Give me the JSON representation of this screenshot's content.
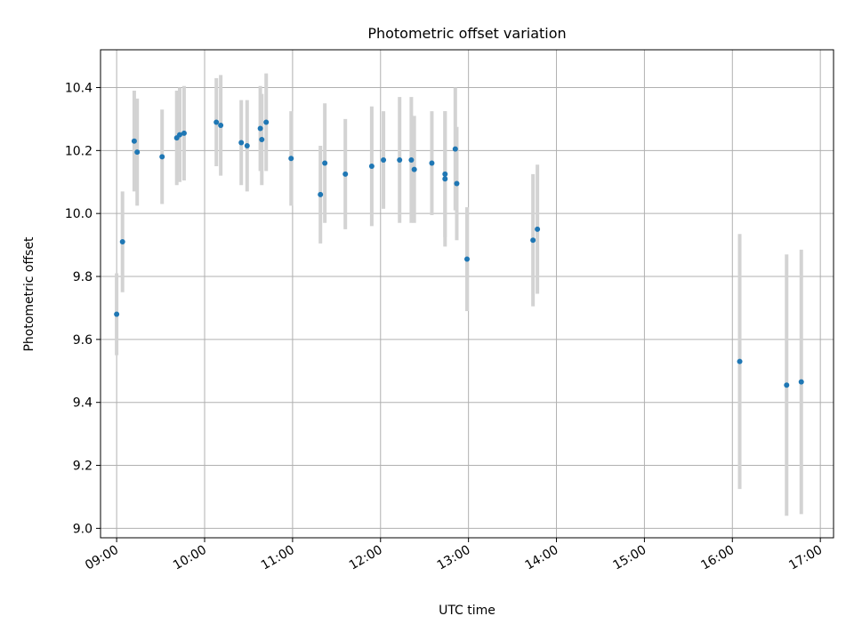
{
  "chart_data": {
    "type": "scatter",
    "title": "Photometric offset variation",
    "xlabel": "UTC time",
    "ylabel": "Photometric offset",
    "xlim": [
      "08:49",
      "17:09"
    ],
    "ylim": [
      8.97,
      10.52
    ],
    "grid": true,
    "x_ticks": [
      "09:00",
      "10:00",
      "11:00",
      "12:00",
      "13:00",
      "14:00",
      "15:00",
      "16:00",
      "17:00"
    ],
    "y_ticks": [
      "9.0",
      "9.2",
      "9.4",
      "9.6",
      "9.8",
      "10.0",
      "10.2",
      "10.4"
    ],
    "colors": {
      "point": "#1f77b4",
      "errorbar": "#d3d3d3",
      "grid": "#b0b0b0"
    },
    "series": [
      {
        "points": [
          {
            "x": "09:00",
            "y": 9.68,
            "err": 0.13
          },
          {
            "x": "09:04",
            "y": 9.91,
            "err": 0.16
          },
          {
            "x": "09:12",
            "y": 10.23,
            "err": 0.16
          },
          {
            "x": "09:14",
            "y": 10.195,
            "err": 0.17
          },
          {
            "x": "09:31",
            "y": 10.18,
            "err": 0.15
          },
          {
            "x": "09:41",
            "y": 10.24,
            "err": 0.15
          },
          {
            "x": "09:43",
            "y": 10.25,
            "err": 0.15
          },
          {
            "x": "09:46",
            "y": 10.255,
            "err": 0.15
          },
          {
            "x": "10:08",
            "y": 10.29,
            "err": 0.14
          },
          {
            "x": "10:11",
            "y": 10.28,
            "err": 0.16
          },
          {
            "x": "10:25",
            "y": 10.225,
            "err": 0.135
          },
          {
            "x": "10:29",
            "y": 10.215,
            "err": 0.145
          },
          {
            "x": "10:38",
            "y": 10.27,
            "err": 0.135
          },
          {
            "x": "10:39",
            "y": 10.235,
            "err": 0.145
          },
          {
            "x": "10:42",
            "y": 10.29,
            "err": 0.155
          },
          {
            "x": "10:59",
            "y": 10.175,
            "err": 0.15
          },
          {
            "x": "11:19",
            "y": 10.06,
            "err": 0.155
          },
          {
            "x": "11:22",
            "y": 10.16,
            "err": 0.19
          },
          {
            "x": "11:36",
            "y": 10.125,
            "err": 0.175
          },
          {
            "x": "11:54",
            "y": 10.15,
            "err": 0.19
          },
          {
            "x": "12:02",
            "y": 10.17,
            "err": 0.155
          },
          {
            "x": "12:13",
            "y": 10.17,
            "err": 0.2
          },
          {
            "x": "12:21",
            "y": 10.17,
            "err": 0.2
          },
          {
            "x": "12:23",
            "y": 10.14,
            "err": 0.17
          },
          {
            "x": "12:35",
            "y": 10.16,
            "err": 0.165
          },
          {
            "x": "12:44",
            "y": 10.125,
            "err": 0.2
          },
          {
            "x": "12:44",
            "y": 10.11,
            "err": 0.215
          },
          {
            "x": "12:51",
            "y": 10.205,
            "err": 0.195
          },
          {
            "x": "12:52",
            "y": 10.095,
            "err": 0.18
          },
          {
            "x": "12:59",
            "y": 9.855,
            "err": 0.165
          },
          {
            "x": "13:44",
            "y": 9.915,
            "err": 0.21
          },
          {
            "x": "13:47",
            "y": 9.95,
            "err": 0.205
          },
          {
            "x": "16:05",
            "y": 9.53,
            "err": 0.405
          },
          {
            "x": "16:37",
            "y": 9.455,
            "err": 0.415
          },
          {
            "x": "16:47",
            "y": 9.465,
            "err": 0.42
          }
        ]
      }
    ]
  }
}
